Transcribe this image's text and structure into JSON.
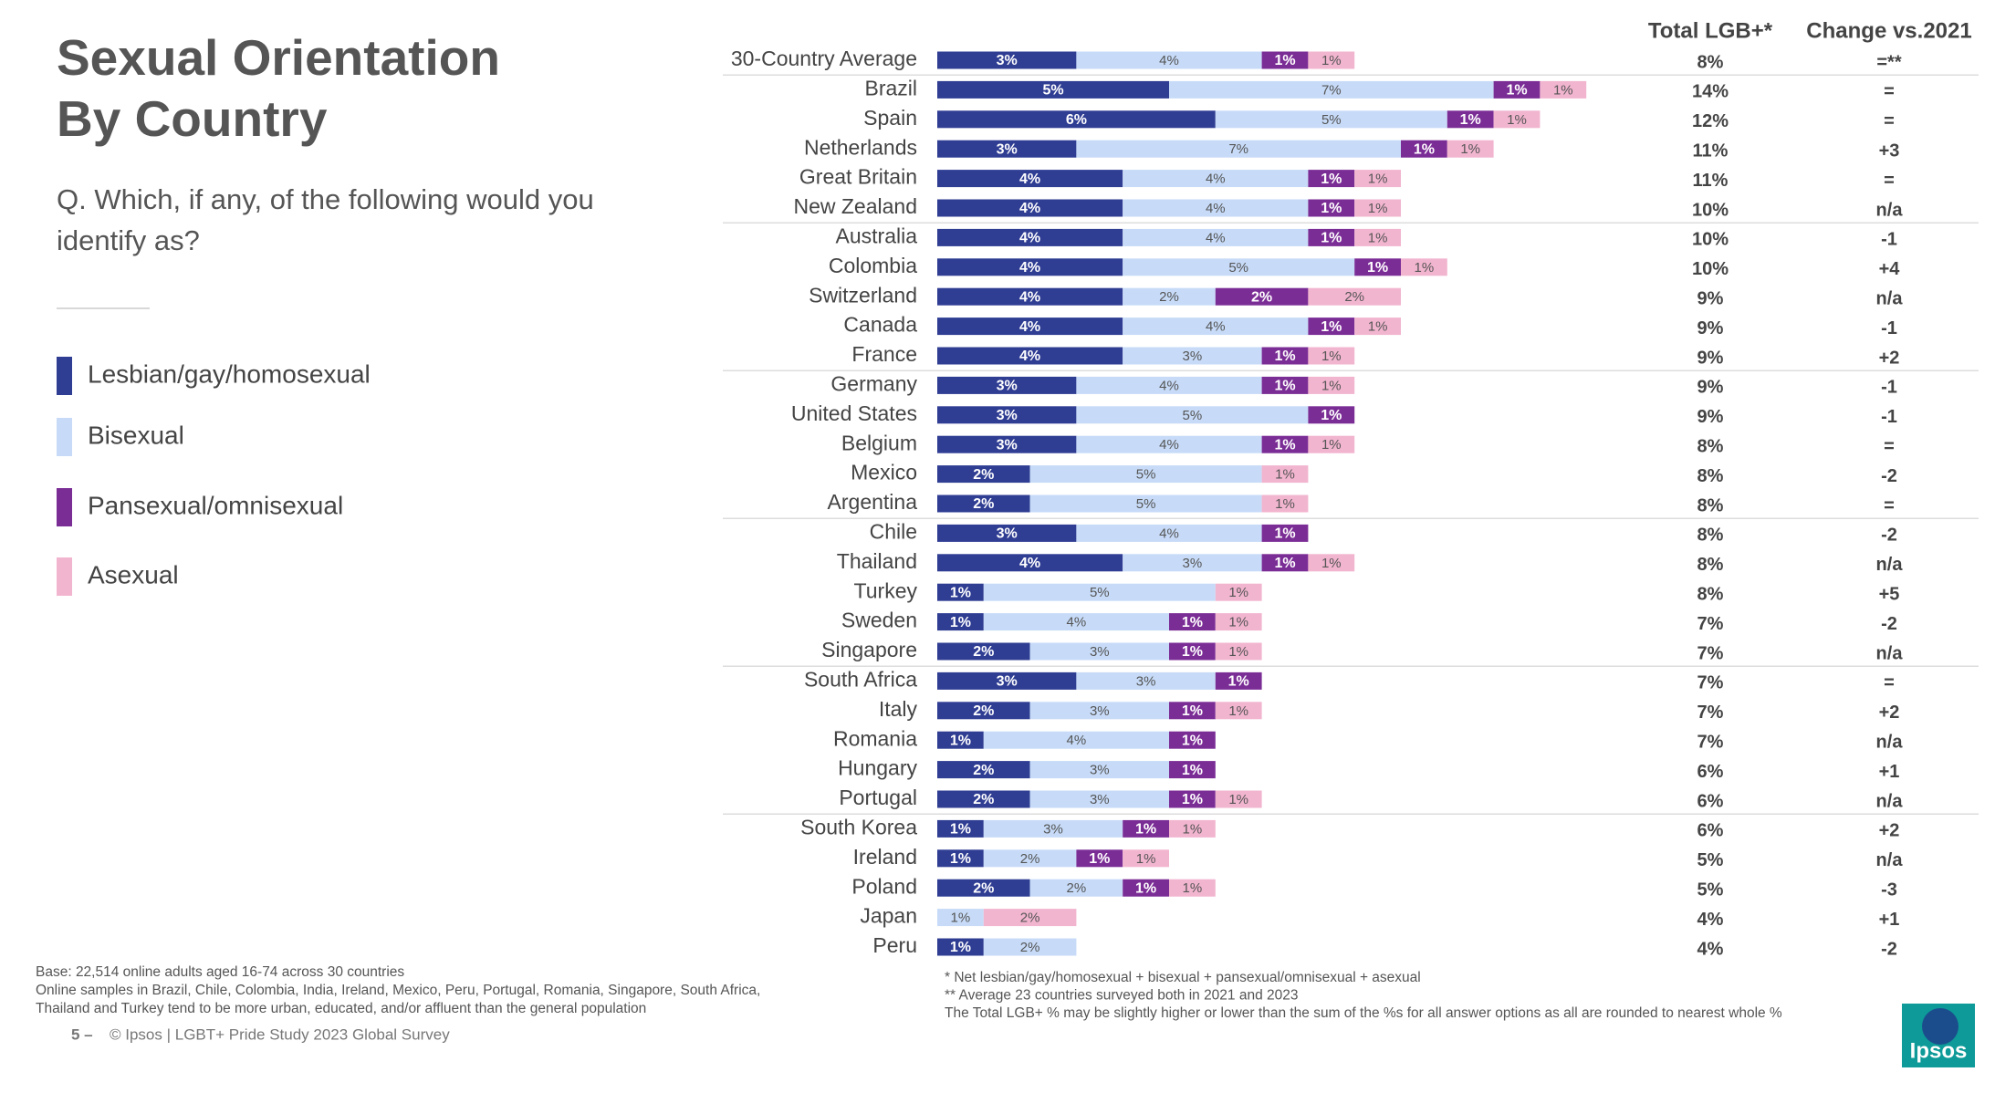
{
  "chart_data": {
    "type": "stacked-bar-horizontal",
    "title": "Sexual Orientation By Country",
    "question": "Q. Which, if any, of the following would you identify as?",
    "categories": [
      "30-Country Average",
      "Brazil",
      "Spain",
      "Netherlands",
      "Great Britain",
      "New Zealand",
      "Australia",
      "Colombia",
      "Switzerland",
      "Canada",
      "France",
      "Germany",
      "United States",
      "Belgium",
      "Mexico",
      "Argentina",
      "Chile",
      "Thailand",
      "Turkey",
      "Sweden",
      "Singapore",
      "South Africa",
      "Italy",
      "Romania",
      "Hungary",
      "Portugal",
      "South Korea",
      "Ireland",
      "Poland",
      "Japan",
      "Peru"
    ],
    "series": [
      {
        "name": "Lesbian/gay/homosexual",
        "color": "#2f3d93",
        "values": [
          3,
          5,
          6,
          3,
          4,
          4,
          4,
          4,
          4,
          4,
          4,
          3,
          3,
          3,
          2,
          2,
          3,
          4,
          1,
          1,
          2,
          3,
          2,
          1,
          2,
          2,
          1,
          1,
          2,
          null,
          1
        ],
        "value_labels": [
          "3%",
          "5%",
          "6%",
          "3%",
          "4%",
          "4%",
          "4%",
          "4%",
          "4%",
          "4%",
          "4%",
          "3%",
          "3%",
          "3%",
          "2%",
          "2%",
          "3%",
          "4%",
          "1%",
          "1%",
          "2%",
          "3%",
          "2%",
          "1%",
          "2%",
          "2%",
          "1%",
          "1%",
          "2%",
          null,
          "1%"
        ]
      },
      {
        "name": "Bisexual",
        "color": "#c7dbf8",
        "values": [
          4,
          7,
          5,
          7,
          4,
          4,
          4,
          5,
          2,
          4,
          3,
          4,
          5,
          4,
          5,
          5,
          4,
          3,
          5,
          4,
          3,
          3,
          3,
          4,
          3,
          3,
          3,
          2,
          2,
          1,
          2
        ],
        "value_labels": [
          "4%",
          "7%",
          "5%",
          "7%",
          "4%",
          "4%",
          "4%",
          "5%",
          "2%",
          "4%",
          "3%",
          "4%",
          "5%",
          "4%",
          "5%",
          "5%",
          "4%",
          "3%",
          "5%",
          "4%",
          "3%",
          "3%",
          "3%",
          "4%",
          "3%",
          "3%",
          "3%",
          "2%",
          "2%",
          "1%",
          "2%"
        ]
      },
      {
        "name": "Pansexual/omnisexual",
        "color": "#7b2d96",
        "values": [
          1,
          1,
          1,
          1,
          1,
          1,
          1,
          1,
          2,
          1,
          1,
          1,
          1,
          1,
          null,
          null,
          1,
          1,
          null,
          1,
          1,
          1,
          1,
          1,
          1,
          1,
          1,
          1,
          1,
          null,
          null
        ],
        "value_labels": [
          "1%",
          "1%",
          "1%",
          "1%",
          "1%",
          "1%",
          "1%",
          "1%",
          "2%",
          "1%",
          "1%",
          "1%",
          "1%",
          "1%",
          null,
          null,
          "1%",
          "1%",
          null,
          "1%",
          "1%",
          "1%",
          "1%",
          "1%",
          "1%",
          "1%",
          "1%",
          "1%",
          "1%",
          null,
          null
        ]
      },
      {
        "name": "Asexual",
        "color": "#f2b5cf",
        "values": [
          1,
          1,
          1,
          1,
          1,
          1,
          1,
          1,
          2,
          1,
          1,
          1,
          null,
          1,
          1,
          1,
          null,
          1,
          1,
          1,
          1,
          null,
          1,
          null,
          null,
          1,
          1,
          1,
          1,
          2,
          null
        ],
        "value_labels": [
          "1%",
          "1%",
          "1%",
          "1%",
          "1%",
          "1%",
          "1%",
          "1%",
          "2%",
          "1%",
          "1%",
          "1%",
          null,
          "1%",
          "1%",
          "1%",
          null,
          "1%",
          "1%",
          "1%",
          "1%",
          null,
          "1%",
          null,
          null,
          "1%",
          "1%",
          "1%",
          "1%",
          "2%",
          null
        ]
      }
    ],
    "xlim": [
      0,
      19
    ],
    "columns": [
      {
        "name": "Total LGB+*",
        "values": [
          "8%",
          "14%",
          "12%",
          "11%",
          "11%",
          "10%",
          "10%",
          "10%",
          "9%",
          "9%",
          "9%",
          "9%",
          "9%",
          "8%",
          "8%",
          "8%",
          "8%",
          "8%",
          "8%",
          "7%",
          "7%",
          "7%",
          "7%",
          "7%",
          "6%",
          "6%",
          "6%",
          "5%",
          "5%",
          "4%",
          "4%"
        ]
      },
      {
        "name": "Change vs.2021",
        "values": [
          "=**",
          "=",
          "=",
          "+3",
          "=",
          "n/a",
          "-1",
          "+4",
          "n/a",
          "-1",
          "+2",
          "-1",
          "-1",
          "=",
          "-2",
          "=",
          "-2",
          "n/a",
          "+5",
          "-2",
          "n/a",
          "=",
          "+2",
          "n/a",
          "+1",
          "n/a",
          "+2",
          "n/a",
          "-3",
          "+1",
          "-2"
        ]
      }
    ],
    "notes": [
      "Base: 22,514 online adults aged 16-74 across 30 countries",
      "Online samples in Brazil, Chile, Colombia, India, Ireland, Mexico, Peru, Portugal, Romania, Singapore, South Africa,",
      "Thailand and Turkey tend to be more urban, educated, and/or affluent than the general population"
    ],
    "footnotes": [
      "* Net lesbian/gay/homosexual + bisexual + pansexual/omnisexual + asexual",
      "** Average 23 countries surveyed both in 2021 and 2023",
      "The Total LGB+ % may be slightly higher or lower than the sum of the %s for all answer options as all are rounded to nearest whole %"
    ],
    "page_number": "5 –",
    "footer": "© Ipsos | LGBT+ Pride Study 2023 Global Survey",
    "logo": "Ipsos"
  }
}
